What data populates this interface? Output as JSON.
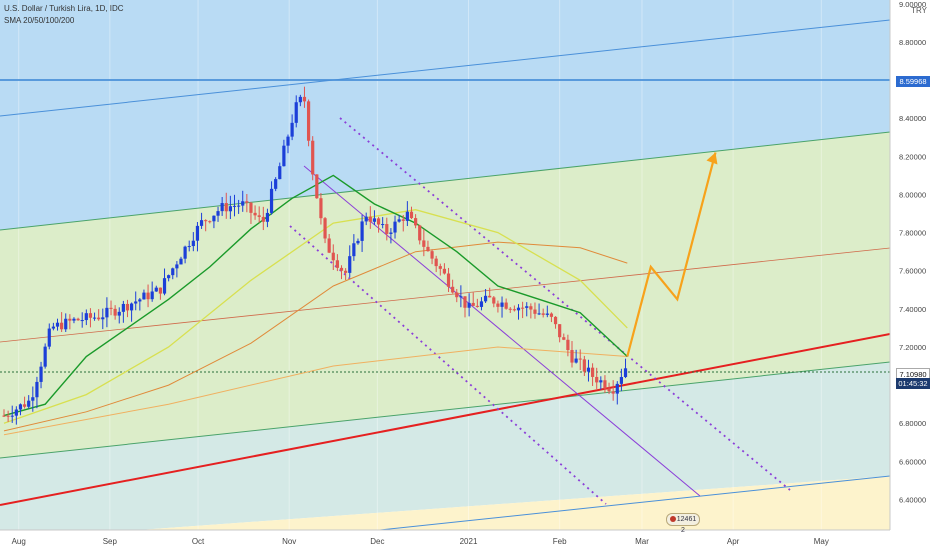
{
  "header": {
    "title": "U.S. Dollar / Turkish Lira, 1D, IDC",
    "indicator": "SMA 20/50/100/200",
    "currency": "TRY"
  },
  "badges": {
    "level_line": "8.59968",
    "last_price": "7.10980",
    "countdown": "01:45:32"
  },
  "events_badge": "12461 2",
  "colors": {
    "bg_blue": "#b9dbf4",
    "bg_green": "#dcedc9",
    "bg_yellow": "#fdf3cc",
    "channel_line": "#4a90d9",
    "trend_red": "#e52020",
    "projection": "#f7a21b",
    "down_channel": "#8b3fd8",
    "candle_up": "#1c3fd8",
    "candle_down": "#e05550",
    "sma20": "#1a9a2a",
    "sma50": "#d8e050",
    "sma100": "#e08a3a",
    "sma200": "#f0b060"
  },
  "chart_data": {
    "type": "candlestick",
    "title": "U.S. Dollar / Turkish Lira, 1D, IDC",
    "ylim": [
      6.24,
      9.02
    ],
    "y_ticks": [
      "6.40000",
      "6.60000",
      "6.80000",
      "7.00000",
      "7.20000",
      "7.40000",
      "7.60000",
      "7.80000",
      "8.00000",
      "8.20000",
      "8.40000",
      "8.60000",
      "8.80000",
      "9.00000"
    ],
    "x_ticks": [
      "Aug",
      "Sep",
      "Oct",
      "Nov",
      "Dec",
      "2021",
      "Feb",
      "Mar",
      "Apr",
      "May"
    ],
    "close_path": [
      {
        "date": "2020-07-27",
        "close": 6.84
      },
      {
        "date": "2020-08-05",
        "close": 6.92
      },
      {
        "date": "2020-08-12",
        "close": 7.3
      },
      {
        "date": "2020-08-20",
        "close": 7.34
      },
      {
        "date": "2020-08-28",
        "close": 7.36
      },
      {
        "date": "2020-09-04",
        "close": 7.4
      },
      {
        "date": "2020-09-11",
        "close": 7.45
      },
      {
        "date": "2020-09-18",
        "close": 7.5
      },
      {
        "date": "2020-09-25",
        "close": 7.68
      },
      {
        "date": "2020-10-02",
        "close": 7.85
      },
      {
        "date": "2020-10-09",
        "close": 7.93
      },
      {
        "date": "2020-10-16",
        "close": 7.95
      },
      {
        "date": "2020-10-23",
        "close": 7.85
      },
      {
        "date": "2020-10-28",
        "close": 8.1
      },
      {
        "date": "2020-11-03",
        "close": 8.45
      },
      {
        "date": "2020-11-06",
        "close": 8.52
      },
      {
        "date": "2020-11-09",
        "close": 8.12
      },
      {
        "date": "2020-11-13",
        "close": 7.75
      },
      {
        "date": "2020-11-20",
        "close": 7.58
      },
      {
        "date": "2020-11-27",
        "close": 7.9
      },
      {
        "date": "2020-12-04",
        "close": 7.8
      },
      {
        "date": "2020-12-11",
        "close": 7.9
      },
      {
        "date": "2020-12-18",
        "close": 7.7
      },
      {
        "date": "2020-12-25",
        "close": 7.55
      },
      {
        "date": "2021-01-01",
        "close": 7.4
      },
      {
        "date": "2021-01-08",
        "close": 7.45
      },
      {
        "date": "2021-01-15",
        "close": 7.42
      },
      {
        "date": "2021-01-22",
        "close": 7.4
      },
      {
        "date": "2021-01-29",
        "close": 7.35
      },
      {
        "date": "2021-02-05",
        "close": 7.15
      },
      {
        "date": "2021-02-12",
        "close": 7.05
      },
      {
        "date": "2021-02-19",
        "close": 6.98
      },
      {
        "date": "2021-02-24",
        "close": 7.11
      }
    ],
    "sma20": [
      {
        "date": "2020-07-27",
        "v": 6.84
      },
      {
        "date": "2020-08-10",
        "v": 6.9
      },
      {
        "date": "2020-08-24",
        "v": 7.15
      },
      {
        "date": "2020-09-07",
        "v": 7.3
      },
      {
        "date": "2020-09-21",
        "v": 7.45
      },
      {
        "date": "2020-10-05",
        "v": 7.62
      },
      {
        "date": "2020-10-19",
        "v": 7.82
      },
      {
        "date": "2020-11-02",
        "v": 7.98
      },
      {
        "date": "2020-11-16",
        "v": 8.1
      },
      {
        "date": "2020-11-30",
        "v": 7.95
      },
      {
        "date": "2020-12-14",
        "v": 7.85
      },
      {
        "date": "2020-12-28",
        "v": 7.7
      },
      {
        "date": "2021-01-11",
        "v": 7.52
      },
      {
        "date": "2021-01-25",
        "v": 7.45
      },
      {
        "date": "2021-02-08",
        "v": 7.38
      },
      {
        "date": "2021-02-24",
        "v": 7.15
      }
    ],
    "sma50": [
      {
        "date": "2020-07-27",
        "v": 6.8
      },
      {
        "date": "2020-08-24",
        "v": 6.95
      },
      {
        "date": "2020-09-21",
        "v": 7.2
      },
      {
        "date": "2020-10-19",
        "v": 7.55
      },
      {
        "date": "2020-11-16",
        "v": 7.85
      },
      {
        "date": "2020-12-14",
        "v": 7.92
      },
      {
        "date": "2021-01-11",
        "v": 7.8
      },
      {
        "date": "2021-02-08",
        "v": 7.55
      },
      {
        "date": "2021-02-24",
        "v": 7.3
      }
    ],
    "sma100": [
      {
        "date": "2020-07-27",
        "v": 6.76
      },
      {
        "date": "2020-08-24",
        "v": 6.86
      },
      {
        "date": "2020-09-21",
        "v": 7.0
      },
      {
        "date": "2020-10-19",
        "v": 7.22
      },
      {
        "date": "2020-11-16",
        "v": 7.52
      },
      {
        "date": "2020-12-14",
        "v": 7.7
      },
      {
        "date": "2021-01-11",
        "v": 7.75
      },
      {
        "date": "2021-02-08",
        "v": 7.72
      },
      {
        "date": "2021-02-24",
        "v": 7.64
      }
    ],
    "sma200": [
      {
        "date": "2020-07-27",
        "v": 6.74
      },
      {
        "date": "2020-09-21",
        "v": 6.9
      },
      {
        "date": "2020-11-16",
        "v": 7.1
      },
      {
        "date": "2021-01-11",
        "v": 7.2
      },
      {
        "date": "2021-02-24",
        "v": 7.15
      }
    ],
    "horizontal_level": 8.59968,
    "last_price": 7.1098,
    "projection": [
      {
        "date": "2021-02-24",
        "v": 7.15
      },
      {
        "date": "2021-03-04",
        "v": 7.62
      },
      {
        "date": "2021-03-13",
        "v": 7.45
      },
      {
        "date": "2021-03-26",
        "v": 8.22
      }
    ]
  }
}
